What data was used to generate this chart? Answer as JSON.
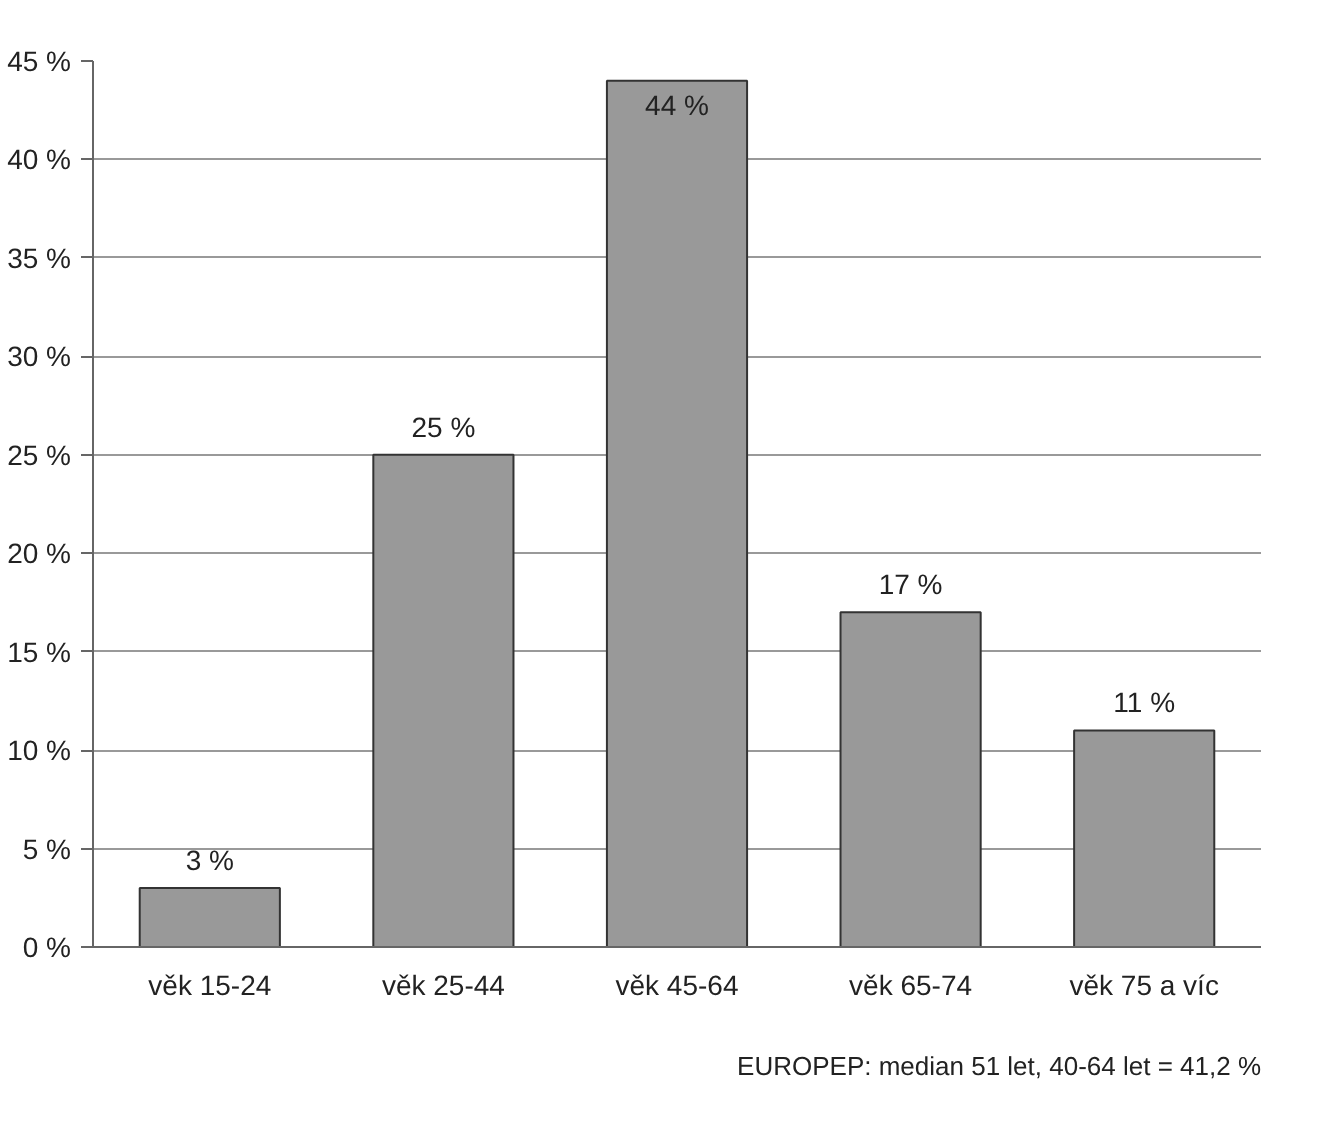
{
  "chart_data": {
    "type": "bar",
    "categories": [
      "věk 15-24",
      "věk 25-44",
      "věk 45-64",
      "věk 65-74",
      "věk 75 a víc"
    ],
    "values": [
      3,
      25,
      44,
      17,
      11
    ],
    "value_labels": [
      "3 %",
      "25 %",
      "44 %",
      "17 %",
      "11 %"
    ],
    "color": "#999999",
    "ylim": [
      0,
      45
    ],
    "yticks": [
      {
        "value": 0,
        "label": "0 %"
      },
      {
        "value": 5,
        "label": "5 %"
      },
      {
        "value": 10,
        "label": "10 %"
      },
      {
        "value": 15,
        "label": "15 %"
      },
      {
        "value": 20,
        "label": "20 %"
      },
      {
        "value": 25,
        "label": "25 %"
      },
      {
        "value": 30,
        "label": "30 %"
      },
      {
        "value": 35,
        "label": "35 %"
      },
      {
        "value": 40,
        "label": "40 %"
      },
      {
        "value": 45,
        "label": "45 %"
      }
    ],
    "grid": "y",
    "annotations": [
      "EUROPEP: median 51 let, 40-64 let = 41,2 %"
    ]
  }
}
